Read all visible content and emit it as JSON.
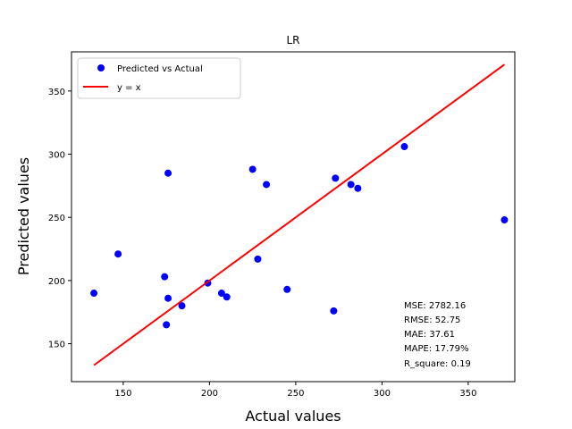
{
  "chart_data": {
    "type": "scatter",
    "title": "LR",
    "xlabel": "Actual values",
    "ylabel": "Predicted values",
    "xlim": [
      120,
      377
    ],
    "ylim": [
      120,
      381
    ],
    "xticks": [
      150,
      200,
      250,
      300,
      350
    ],
    "yticks": [
      150,
      200,
      250,
      300,
      350
    ],
    "grid": false,
    "legend_position": "top-left",
    "series": [
      {
        "name": "Predicted vs Actual",
        "kind": "scatter",
        "color": "#0000ff",
        "x": [
          133,
          147,
          174,
          175,
          176,
          176,
          184,
          199,
          207,
          210,
          225,
          228,
          233,
          245,
          272,
          273,
          282,
          286,
          313,
          371
        ],
        "y": [
          190,
          221,
          203,
          165,
          186,
          285,
          180,
          198,
          190,
          187,
          288,
          217,
          276,
          193,
          176,
          281,
          276,
          273,
          306,
          248
        ]
      },
      {
        "name": "y = x",
        "kind": "line",
        "color": "#ff0000",
        "x": [
          133,
          371
        ],
        "y": [
          133,
          371
        ]
      }
    ],
    "stats": [
      "MSE: 2782.16",
      "RMSE: 52.75",
      "MAE: 37.61",
      "MAPE: 17.79%",
      "R_square: 0.19"
    ]
  }
}
